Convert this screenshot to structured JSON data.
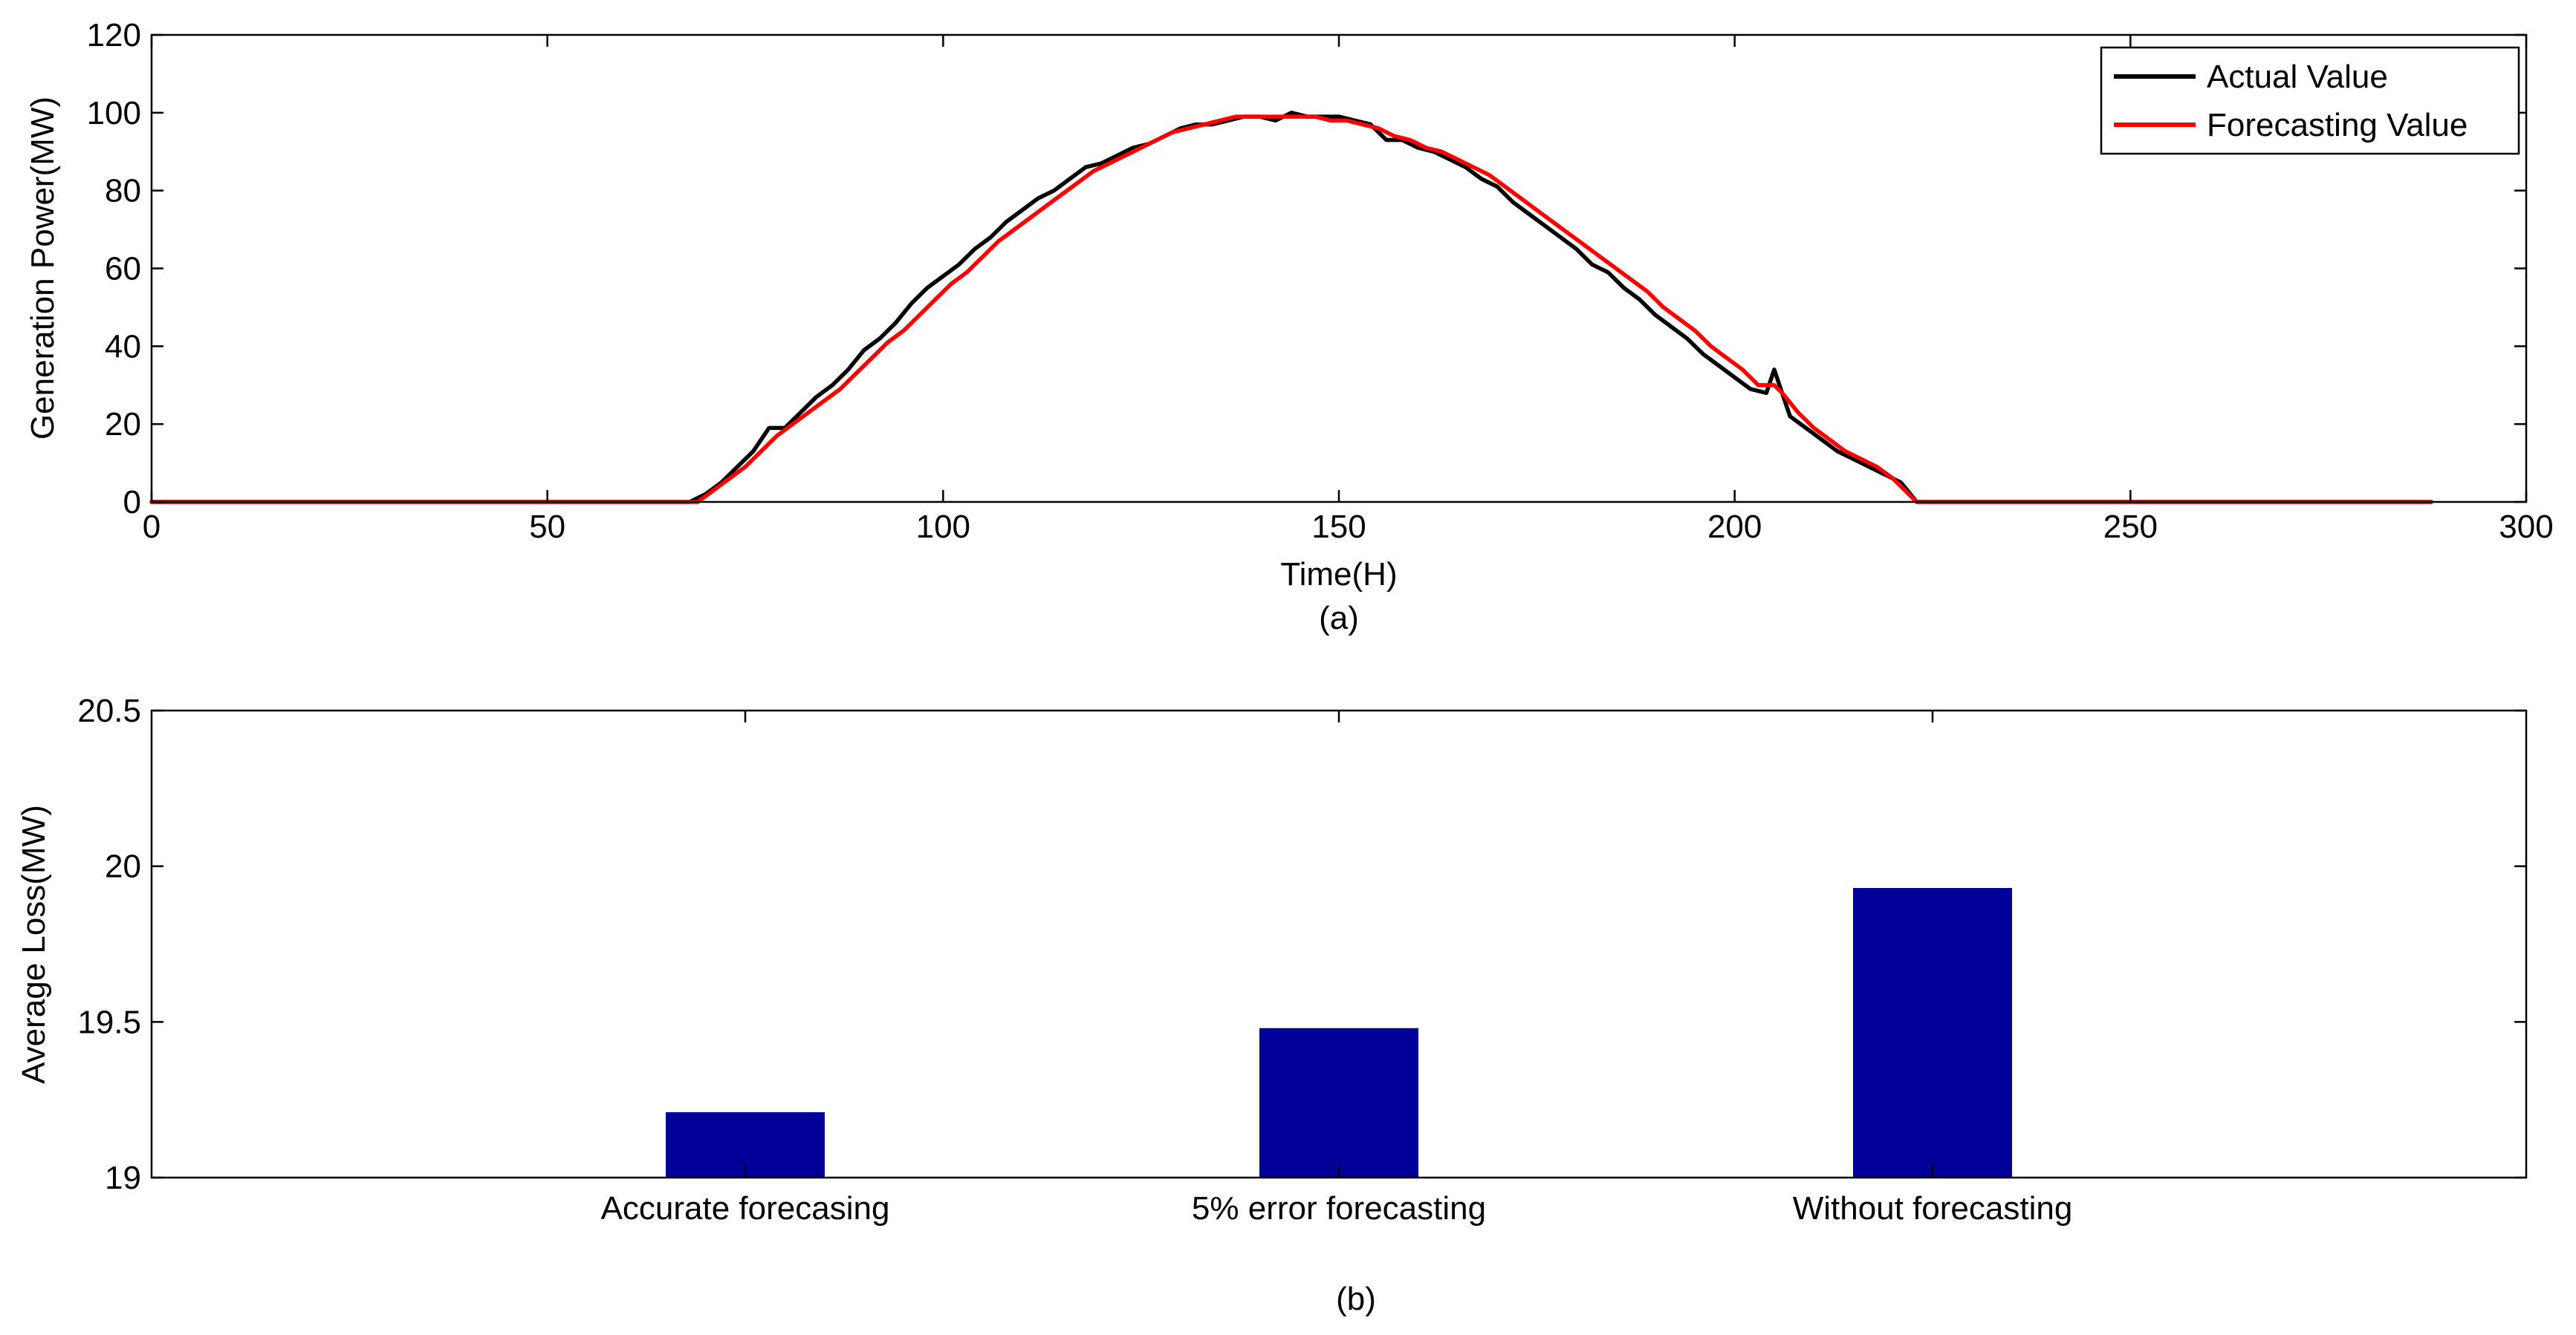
{
  "chart_data": [
    {
      "type": "line",
      "caption": "(a)",
      "xlabel": "Time(H)",
      "ylabel": "Generation Power(MW)",
      "xlim": [
        0,
        300
      ],
      "ylim": [
        0,
        120
      ],
      "xticks": [
        0,
        50,
        100,
        150,
        200,
        250,
        300
      ],
      "yticks": [
        0,
        20,
        40,
        60,
        80,
        100,
        120
      ],
      "grid": false,
      "legend_position": "top-right",
      "series": [
        {
          "name": "Actual Value",
          "color": "#000000",
          "points": [
            [
              0,
              0
            ],
            [
              68,
              0
            ],
            [
              70,
              2
            ],
            [
              72,
              5
            ],
            [
              74,
              9
            ],
            [
              76,
              13
            ],
            [
              78,
              19
            ],
            [
              80,
              19
            ],
            [
              82,
              23
            ],
            [
              84,
              27
            ],
            [
              86,
              30
            ],
            [
              88,
              34
            ],
            [
              90,
              39
            ],
            [
              92,
              42
            ],
            [
              94,
              46
            ],
            [
              96,
              51
            ],
            [
              98,
              55
            ],
            [
              100,
              58
            ],
            [
              102,
              61
            ],
            [
              104,
              65
            ],
            [
              106,
              68
            ],
            [
              108,
              72
            ],
            [
              110,
              75
            ],
            [
              112,
              78
            ],
            [
              114,
              80
            ],
            [
              116,
              83
            ],
            [
              118,
              86
            ],
            [
              120,
              87
            ],
            [
              122,
              89
            ],
            [
              124,
              91
            ],
            [
              126,
              92
            ],
            [
              128,
              94
            ],
            [
              130,
              96
            ],
            [
              132,
              97
            ],
            [
              134,
              97
            ],
            [
              136,
              98
            ],
            [
              138,
              99
            ],
            [
              140,
              99
            ],
            [
              142,
              98
            ],
            [
              144,
              100
            ],
            [
              146,
              99
            ],
            [
              148,
              99
            ],
            [
              150,
              99
            ],
            [
              152,
              98
            ],
            [
              154,
              97
            ],
            [
              156,
              93
            ],
            [
              158,
              93
            ],
            [
              160,
              91
            ],
            [
              162,
              90
            ],
            [
              164,
              88
            ],
            [
              166,
              86
            ],
            [
              168,
              83
            ],
            [
              170,
              81
            ],
            [
              172,
              77
            ],
            [
              174,
              74
            ],
            [
              176,
              71
            ],
            [
              178,
              68
            ],
            [
              180,
              65
            ],
            [
              182,
              61
            ],
            [
              184,
              59
            ],
            [
              186,
              55
            ],
            [
              188,
              52
            ],
            [
              190,
              48
            ],
            [
              192,
              45
            ],
            [
              194,
              42
            ],
            [
              196,
              38
            ],
            [
              198,
              35
            ],
            [
              200,
              32
            ],
            [
              202,
              29
            ],
            [
              204,
              28
            ],
            [
              205,
              34
            ],
            [
              207,
              22
            ],
            [
              209,
              19
            ],
            [
              211,
              16
            ],
            [
              213,
              13
            ],
            [
              215,
              11
            ],
            [
              217,
              9
            ],
            [
              219,
              7
            ],
            [
              221,
              5
            ],
            [
              223,
              0
            ],
            [
              288,
              0
            ]
          ]
        },
        {
          "name": "Forecasting Value",
          "color": "#ff0000",
          "points": [
            [
              0,
              0
            ],
            [
              69,
              0
            ],
            [
              71,
              3
            ],
            [
              73,
              6
            ],
            [
              75,
              9
            ],
            [
              77,
              13
            ],
            [
              79,
              17
            ],
            [
              81,
              20
            ],
            [
              83,
              23
            ],
            [
              85,
              26
            ],
            [
              87,
              29
            ],
            [
              89,
              33
            ],
            [
              91,
              37
            ],
            [
              93,
              41
            ],
            [
              95,
              44
            ],
            [
              97,
              48
            ],
            [
              99,
              52
            ],
            [
              101,
              56
            ],
            [
              103,
              59
            ],
            [
              105,
              63
            ],
            [
              107,
              67
            ],
            [
              109,
              70
            ],
            [
              111,
              73
            ],
            [
              113,
              76
            ],
            [
              115,
              79
            ],
            [
              117,
              82
            ],
            [
              119,
              85
            ],
            [
              121,
              87
            ],
            [
              123,
              89
            ],
            [
              125,
              91
            ],
            [
              127,
              93
            ],
            [
              129,
              95
            ],
            [
              131,
              96
            ],
            [
              133,
              97
            ],
            [
              135,
              98
            ],
            [
              137,
              99
            ],
            [
              139,
              99
            ],
            [
              141,
              99
            ],
            [
              143,
              99
            ],
            [
              145,
              99
            ],
            [
              147,
              99
            ],
            [
              149,
              98
            ],
            [
              151,
              98
            ],
            [
              153,
              97
            ],
            [
              155,
              96
            ],
            [
              157,
              94
            ],
            [
              159,
              93
            ],
            [
              161,
              91
            ],
            [
              163,
              90
            ],
            [
              165,
              88
            ],
            [
              167,
              86
            ],
            [
              169,
              84
            ],
            [
              171,
              81
            ],
            [
              173,
              78
            ],
            [
              175,
              75
            ],
            [
              177,
              72
            ],
            [
              179,
              69
            ],
            [
              181,
              66
            ],
            [
              183,
              63
            ],
            [
              185,
              60
            ],
            [
              187,
              57
            ],
            [
              189,
              54
            ],
            [
              191,
              50
            ],
            [
              193,
              47
            ],
            [
              195,
              44
            ],
            [
              197,
              40
            ],
            [
              199,
              37
            ],
            [
              201,
              34
            ],
            [
              203,
              30
            ],
            [
              205,
              30
            ],
            [
              206,
              28
            ],
            [
              208,
              23
            ],
            [
              210,
              19
            ],
            [
              212,
              16
            ],
            [
              214,
              13
            ],
            [
              216,
              11
            ],
            [
              218,
              9
            ],
            [
              220,
              6
            ],
            [
              221,
              4
            ],
            [
              222,
              2
            ],
            [
              223,
              0
            ],
            [
              288,
              0
            ]
          ]
        }
      ]
    },
    {
      "type": "bar",
      "caption": "(b)",
      "xlabel": "",
      "ylabel": "Average Loss(MW)",
      "categories": [
        "Accurate forecasing",
        "5% error forecasting",
        "Without forecasting"
      ],
      "values": [
        19.21,
        19.48,
        19.93
      ],
      "ylim": [
        19,
        20.5
      ],
      "yticks": [
        "19",
        "19.5",
        "20",
        "20.5"
      ],
      "bar_color": "#000099",
      "grid": false
    }
  ]
}
